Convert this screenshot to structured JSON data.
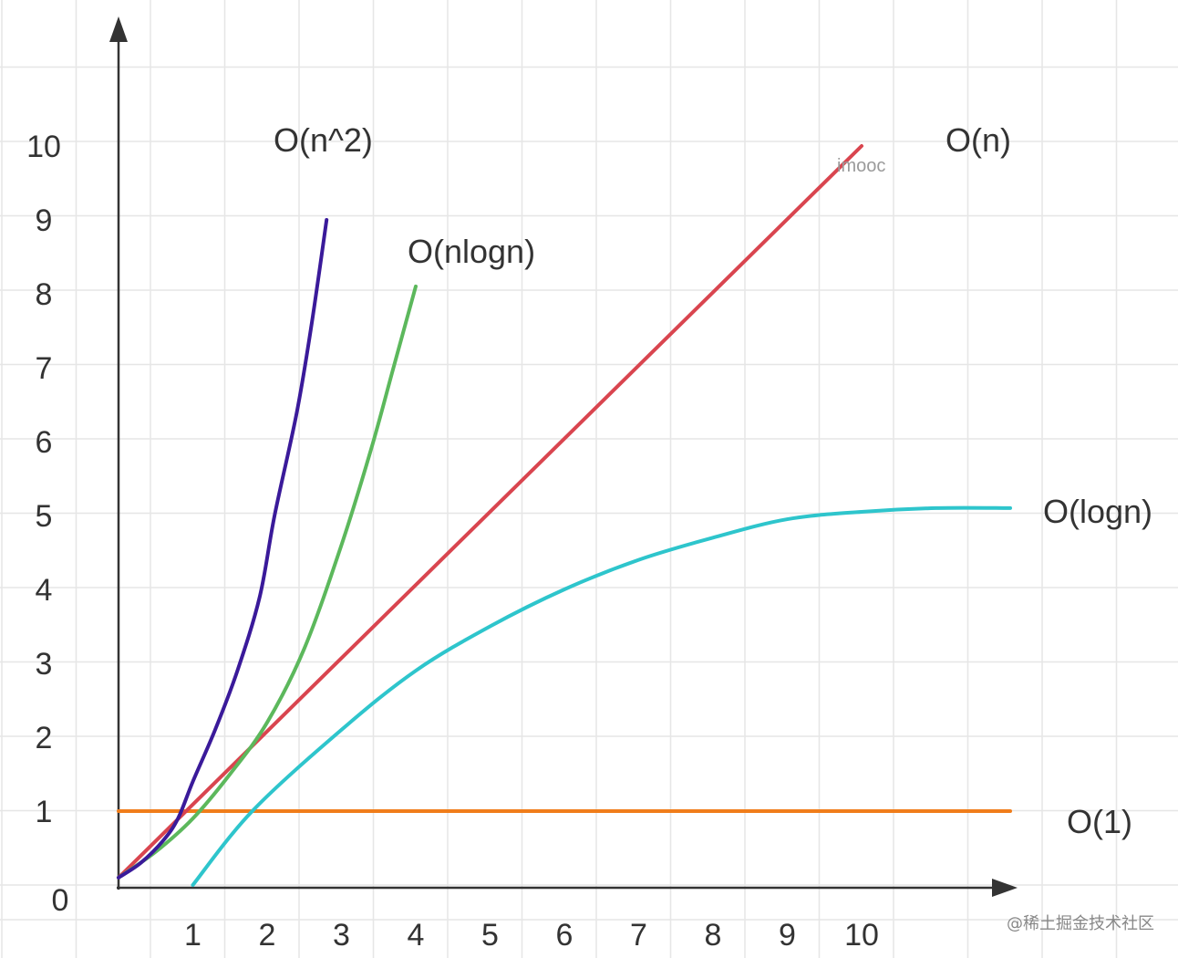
{
  "chart_data": {
    "type": "line",
    "title": "",
    "xlabel": "",
    "ylabel": "",
    "xlim": [
      0,
      12
    ],
    "ylim": [
      0,
      11
    ],
    "grid": true,
    "x_ticks": [
      1,
      2,
      3,
      4,
      5,
      6,
      7,
      8,
      9,
      10
    ],
    "y_ticks": [
      0,
      1,
      2,
      3,
      4,
      5,
      6,
      7,
      8,
      9,
      10
    ],
    "series": [
      {
        "name": "O(n^2)",
        "color": "#3a1a9a",
        "x": [
          0,
          0.3,
          0.6,
          0.8,
          1.0,
          1.3,
          1.6,
          1.9,
          2.1,
          2.4,
          2.6,
          2.8
        ],
        "y": [
          0.1,
          0.3,
          0.6,
          0.9,
          1.4,
          2.1,
          2.9,
          3.9,
          5.0,
          6.4,
          7.6,
          9.0
        ]
      },
      {
        "name": "O(nlogn)",
        "color": "#5cb85c",
        "x": [
          0,
          0.5,
          1.0,
          1.5,
          2.0,
          2.5,
          3.0,
          3.4,
          3.7,
          4.0
        ],
        "y": [
          0.1,
          0.45,
          0.9,
          1.5,
          2.2,
          3.2,
          4.6,
          5.9,
          7.0,
          8.1
        ]
      },
      {
        "name": "O(n)",
        "color": "#d9454f",
        "x": [
          0,
          10
        ],
        "y": [
          0.1,
          10.0
        ]
      },
      {
        "name": "O(logn)",
        "color": "#2ec5cc",
        "x": [
          1.0,
          1.8,
          3,
          4,
          5,
          6,
          7,
          8,
          9,
          10,
          11,
          12
        ],
        "y": [
          0.0,
          1.0,
          2.1,
          2.9,
          3.5,
          4.0,
          4.4,
          4.7,
          4.95,
          5.05,
          5.1,
          5.1
        ]
      },
      {
        "name": "O(1)",
        "color": "#f07d1a",
        "x": [
          0,
          12
        ],
        "y": [
          1.0,
          1.0
        ]
      }
    ],
    "annotations": {
      "watermark": "imooc",
      "credit": "@稀土掘金技术社区"
    }
  },
  "colors": {
    "axis": "#333333",
    "grid": "#e6e6e6",
    "background": "#ffffff"
  }
}
